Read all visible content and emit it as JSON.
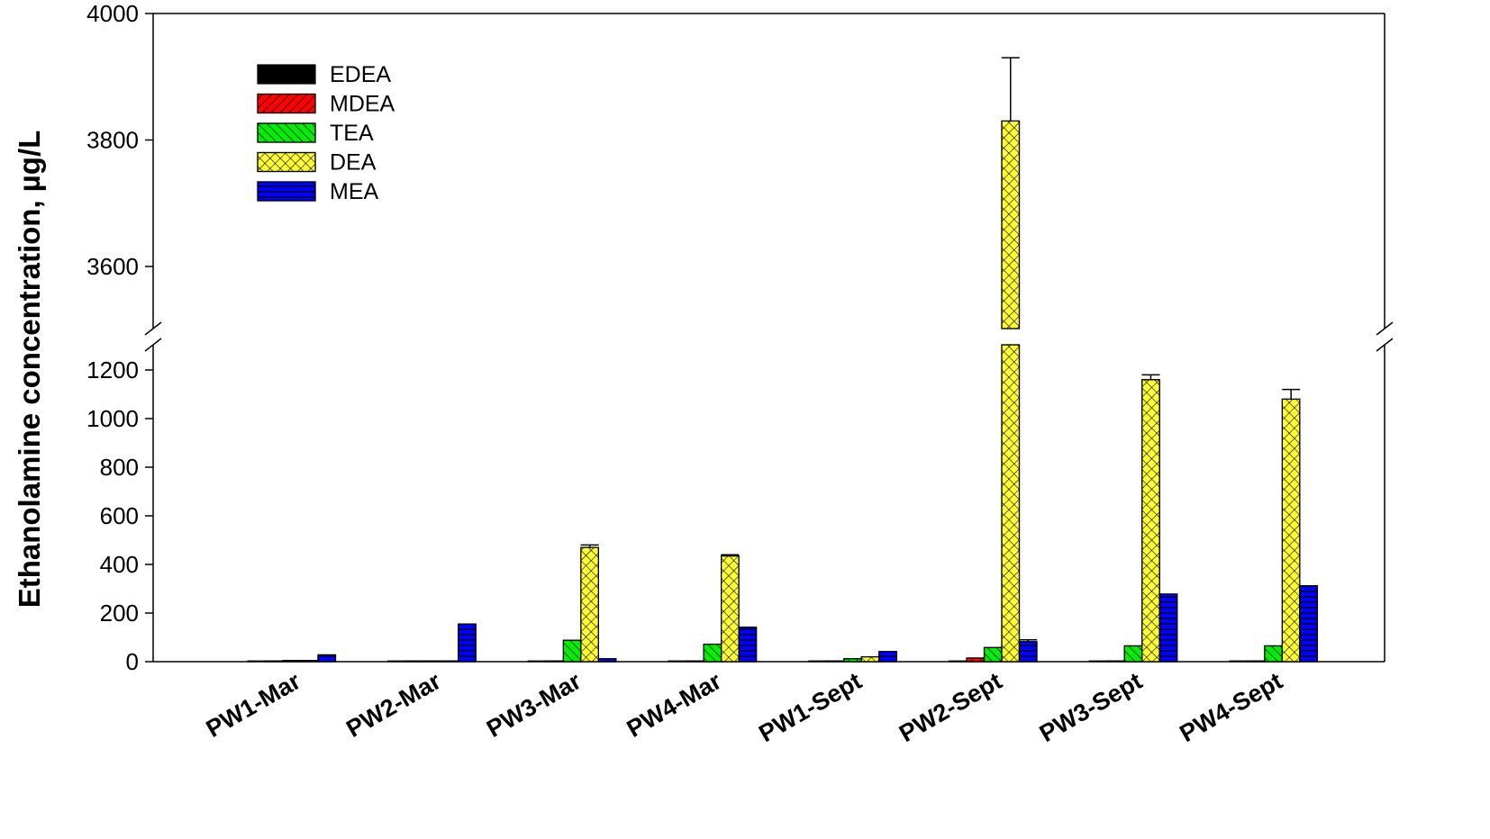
{
  "chart_data": {
    "type": "bar",
    "title": "",
    "xlabel": "",
    "ylabel": "Ethanolamine concentration, µg/L",
    "y_axis_break": true,
    "ylim_lower": [
      0,
      1300
    ],
    "ylim_upper": [
      3500,
      4000
    ],
    "yticks_lower": [
      "0",
      "200",
      "400",
      "600",
      "800",
      "1000",
      "1200"
    ],
    "yticks_upper": [
      "3600",
      "3800",
      "4000"
    ],
    "legend_position": "top-left",
    "categories": [
      "PW1-Mar",
      "PW2-Mar",
      "PW3-Mar",
      "PW4-Mar",
      "PW1-Sept",
      "PW2-Sept",
      "PW3-Sept",
      "PW4-Sept"
    ],
    "series": [
      {
        "name": "EDEA",
        "color": "#000000",
        "pattern": "solid",
        "values": [
          3,
          2,
          3,
          3,
          3,
          2,
          3,
          3
        ],
        "errors": [
          0,
          0,
          0,
          0,
          0,
          0,
          0,
          0
        ]
      },
      {
        "name": "MDEA",
        "color": "#ff0000",
        "pattern": "diagonal-right",
        "values": [
          3,
          2,
          2,
          2,
          2,
          15,
          2,
          2
        ],
        "errors": [
          0,
          0,
          0,
          0,
          0,
          0,
          0,
          0
        ]
      },
      {
        "name": "TEA",
        "color": "#00ee00",
        "pattern": "diagonal-left",
        "values": [
          5,
          3,
          88,
          72,
          12,
          58,
          65,
          65
        ],
        "errors": [
          0,
          0,
          0,
          0,
          0,
          0,
          0,
          0
        ]
      },
      {
        "name": "DEA",
        "color": "#ffff33",
        "pattern": "crosshatch",
        "values": [
          5,
          3,
          470,
          435,
          20,
          3830,
          1160,
          1080
        ],
        "errors": [
          0,
          0,
          10,
          5,
          0,
          100,
          20,
          40
        ]
      },
      {
        "name": "MEA",
        "color": "#0000ff",
        "pattern": "horizontal",
        "values": [
          28,
          155,
          12,
          142,
          42,
          82,
          278,
          312
        ],
        "errors": [
          0,
          0,
          0,
          0,
          0,
          8,
          0,
          0
        ]
      }
    ]
  }
}
